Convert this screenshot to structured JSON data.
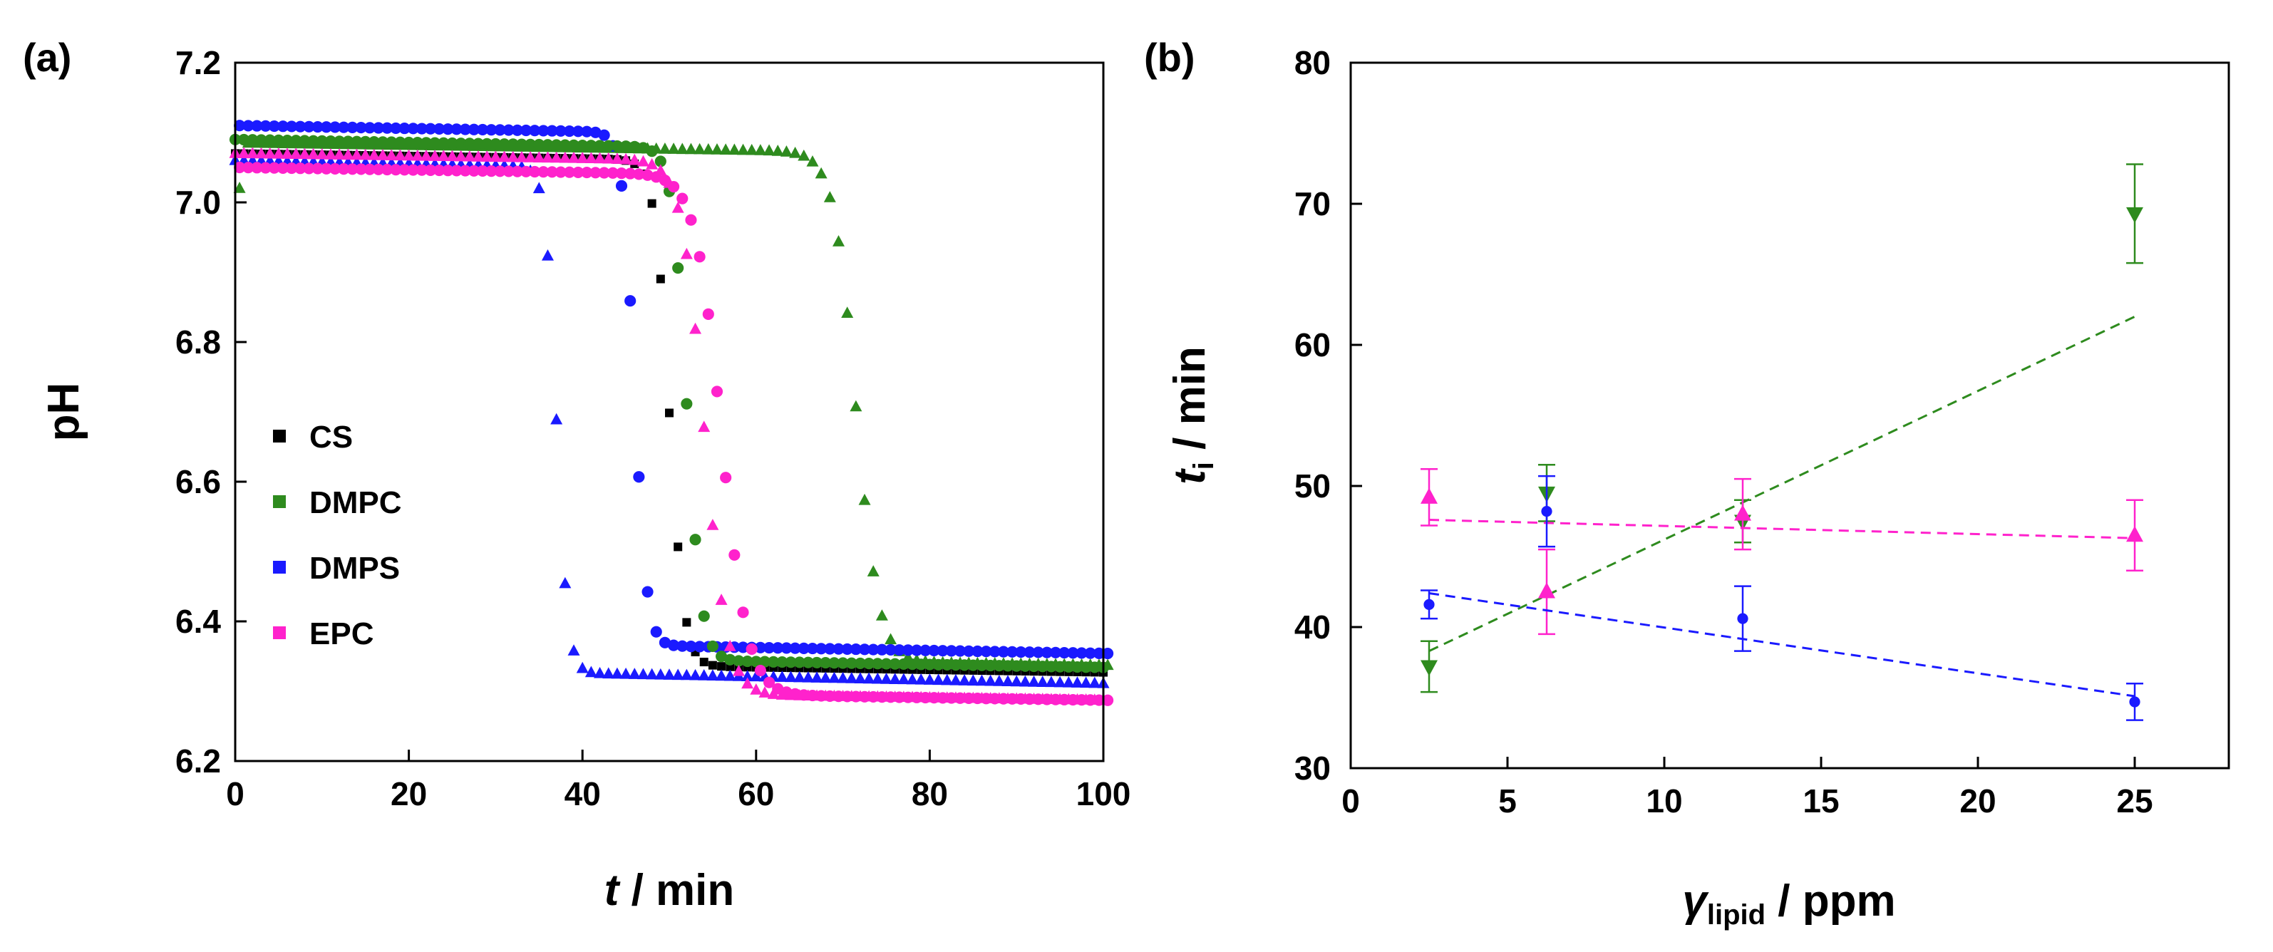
{
  "chart_data": [
    {
      "panel_label": "(a)",
      "type": "scatter",
      "xlabel": {
        "var": "t",
        "unit": " / min"
      },
      "ylabel": "pH",
      "xlim": [
        0,
        100
      ],
      "ylim": [
        6.2,
        7.2
      ],
      "x_ticks": [
        0,
        20,
        40,
        60,
        80,
        100
      ],
      "y_ticks": [
        6.2,
        6.4,
        6.6,
        6.8,
        7.0,
        7.2
      ],
      "x_tick_labels": [
        "0",
        "20",
        "40",
        "60",
        "80",
        "100"
      ],
      "y_tick_labels": [
        "6.2",
        "6.4",
        "6.6",
        "6.8",
        "7.0",
        "7.2"
      ],
      "legend_position": "center-left",
      "grid": false,
      "series": [
        {
          "name": "CS",
          "color": "#000000",
          "marker": "square",
          "curve": {
            "start": 7.07,
            "end": 6.345,
            "t0": 50.0,
            "w": 1.7,
            "drift": 0.0012,
            "sharp": 1
          }
        },
        {
          "name": "DMPC",
          "color": "#2e8b1e",
          "marker": "triangle-up",
          "first_point": [
            0,
            7.02
          ],
          "curve": {
            "start": 7.085,
            "end": 6.355,
            "t0": 71.0,
            "w": 2.6,
            "drift": 0.0012,
            "sharp": 0.85
          }
        },
        {
          "name": "DMPS",
          "color": "#1a1aff",
          "marker": "triangle-up",
          "curve": {
            "start": 7.06,
            "end": 6.335,
            "t0": 37.0,
            "w": 1.3,
            "drift": 0.0016,
            "sharp": 1
          }
        },
        {
          "name": "DMPS",
          "color": "#1a1aff",
          "marker": "circle",
          "curve": {
            "start": 7.11,
            "end": 6.375,
            "t0": 45.5,
            "w": 1.4,
            "drift": 0.0014,
            "sharp": 1
          }
        },
        {
          "name": "DMPC",
          "color": "#2e8b1e",
          "marker": "circle",
          "curve": {
            "start": 7.09,
            "end": 6.355,
            "t0": 52.0,
            "w": 1.7,
            "drift": 0.0014,
            "sharp": 1
          }
        },
        {
          "name": "EPC",
          "color": "#ff22cc",
          "marker": "circle",
          "curve": {
            "start": 7.05,
            "end": 6.305,
            "t0": 55.5,
            "w": 3.0,
            "drift": 0.0012,
            "sharp": 0.9
          }
        },
        {
          "name": "EPC",
          "color": "#ff22cc",
          "marker": "triangle-up",
          "curve": {
            "start": 7.07,
            "end": 6.305,
            "t0": 54.0,
            "w": 2.6,
            "drift": 0.0012,
            "sharp": 0.9
          }
        }
      ],
      "legend": [
        {
          "name": "CS",
          "color": "#000000"
        },
        {
          "name": "DMPC",
          "color": "#2e8b1e"
        },
        {
          "name": "DMPS",
          "color": "#1a1aff"
        },
        {
          "name": "EPC",
          "color": "#ff22cc"
        }
      ]
    },
    {
      "panel_label": "(b)",
      "type": "scatter",
      "xlabel": {
        "var": "γ",
        "sub": "lipid",
        "unit": " / ppm"
      },
      "ylabel": {
        "var": "t",
        "sub": "i",
        "unit": " / min"
      },
      "xlim": [
        0,
        28
      ],
      "ylim": [
        30,
        80
      ],
      "x_ticks": [
        0,
        5,
        10,
        15,
        20,
        25
      ],
      "y_ticks": [
        30,
        40,
        50,
        60,
        70,
        80
      ],
      "x_tick_labels": [
        "0",
        "5",
        "10",
        "15",
        "20",
        "25"
      ],
      "y_tick_labels": [
        "30",
        "40",
        "50",
        "60",
        "70",
        "80"
      ],
      "grid": false,
      "series": [
        {
          "color": "#2e8b1e",
          "marker": "triangle-down",
          "x": [
            2.5,
            6.25,
            12.5,
            25
          ],
          "y": [
            37.2,
            49.5,
            47.5,
            69.3
          ],
          "err": [
            1.8,
            2.0,
            1.5,
            3.5
          ],
          "fit": {
            "x": [
              2.5,
              25
            ],
            "y": [
              38.3,
              62.0
            ]
          }
        },
        {
          "color": "#ff22cc",
          "marker": "triangle-up",
          "x": [
            2.5,
            6.25,
            12.5,
            25
          ],
          "y": [
            49.2,
            42.5,
            48.0,
            46.5
          ],
          "err": [
            2.0,
            3.0,
            2.5,
            2.5
          ],
          "fit": {
            "x": [
              2.5,
              25
            ],
            "y": [
              47.6,
              46.3
            ]
          }
        },
        {
          "color": "#1a1aff",
          "marker": "circle",
          "x": [
            2.5,
            6.25,
            12.5,
            25
          ],
          "y": [
            41.6,
            48.2,
            40.6,
            34.7
          ],
          "err": [
            1.0,
            2.5,
            2.3,
            1.3
          ],
          "fit": {
            "x": [
              2.5,
              25
            ],
            "y": [
              42.4,
              35.1
            ]
          }
        }
      ]
    }
  ]
}
